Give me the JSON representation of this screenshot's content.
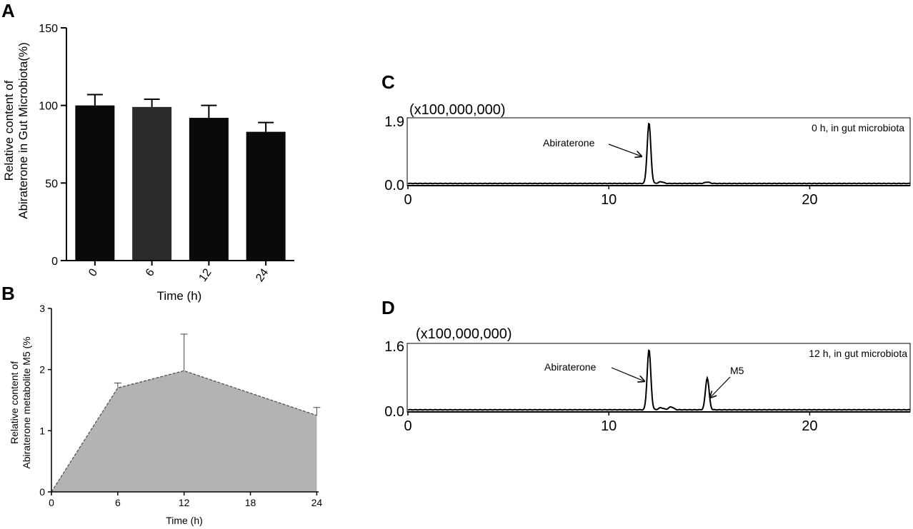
{
  "panels": {
    "a": "A",
    "b": "B",
    "c": "C",
    "d": "D"
  },
  "chart_data": [
    {
      "panel": "A",
      "type": "bar",
      "categories": [
        "0",
        "6",
        "12",
        "24"
      ],
      "values": [
        100,
        99,
        92,
        83
      ],
      "errors": [
        7,
        5,
        8,
        6
      ],
      "bar_colors": [
        "#0a0a0a",
        "#2a2a2a",
        "#0a0a0a",
        "#0a0a0a"
      ],
      "xlabel": "Time (h)",
      "ylabel_line1": "Relative content of",
      "ylabel_line2": "Abiraterone in Gut Microbiota(%)",
      "ylim": [
        0,
        150
      ],
      "yticks": [
        0,
        50,
        100,
        150
      ]
    },
    {
      "panel": "B",
      "type": "area",
      "x": [
        0,
        6,
        12,
        24
      ],
      "values": [
        0,
        1.7,
        1.98,
        1.25
      ],
      "errors": [
        0,
        0.08,
        0.6,
        0.13
      ],
      "fill": "#b3b3b3",
      "xlabel": "Time (h)",
      "ylabel_line1": "Relative content of",
      "ylabel_line2": "Abiraterone metabolite M5 (%",
      "xlim": [
        0,
        24
      ],
      "ylim": [
        0,
        3
      ],
      "xticks": [
        0,
        6,
        12,
        18,
        24
      ],
      "yticks": [
        0,
        1,
        2,
        3
      ]
    },
    {
      "panel": "C",
      "type": "line",
      "scale_label": "(x100,000,000)",
      "annotation": "0 h, in gut microbiota",
      "xlim": [
        0,
        25
      ],
      "ylim": [
        0,
        1.9
      ],
      "xticks": [
        0,
        10,
        20
      ],
      "ytick_labels": [
        "0.0",
        "1.9"
      ],
      "peaks": [
        {
          "x": 12.0,
          "height": 1.75,
          "label": "Abiraterone"
        },
        {
          "x": 12.6,
          "height": 0.05,
          "label": ""
        },
        {
          "x": 14.9,
          "height": 0.04,
          "label": ""
        }
      ]
    },
    {
      "panel": "D",
      "type": "line",
      "scale_label": "(x100,000,000)",
      "annotation": "12 h, in gut microbiota",
      "xlim": [
        0,
        25
      ],
      "ylim": [
        0,
        1.6
      ],
      "xticks": [
        0,
        10,
        20
      ],
      "ytick_labels": [
        "0.0",
        "1.6"
      ],
      "peaks": [
        {
          "x": 12.0,
          "height": 1.45,
          "label": "Abiraterone"
        },
        {
          "x": 14.9,
          "height": 0.77,
          "label": "M5"
        },
        {
          "x": 13.1,
          "height": 0.07,
          "label": ""
        },
        {
          "x": 12.6,
          "height": 0.05,
          "label": ""
        }
      ]
    }
  ]
}
